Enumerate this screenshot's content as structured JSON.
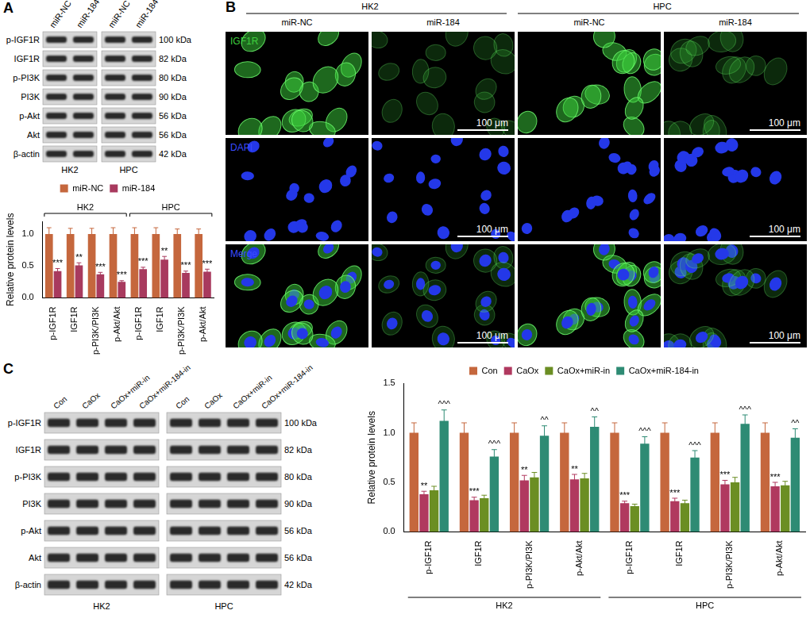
{
  "blots": [
    {
      "panel": "A",
      "cell_lines": [
        "HK2",
        "HPC"
      ],
      "lanes": [
        "miR-NC",
        "miR-184"
      ],
      "rows": [
        "p-IGF1R",
        "IGF1R",
        "p-PI3K",
        "PI3K",
        "p-Akt",
        "Akt",
        "β-actin"
      ],
      "sizes": [
        "100 kDa",
        "82 kDa",
        "80 kDa",
        "90 kDa",
        "56 kDa",
        "56 kDa",
        "42 kDa"
      ]
    },
    {
      "panel": "C",
      "cell_lines": [
        "HK2",
        "HPC"
      ],
      "lanes": [
        "Con",
        "CaOx",
        "CaOx+miR-in",
        "CaOx+miR-184-in"
      ],
      "rows": [
        "p-IGF1R",
        "IGF1R",
        "p-PI3K",
        "PI3K",
        "p-Akt",
        "Akt",
        "β-actin"
      ],
      "sizes": [
        "100 kDa",
        "82 kDa",
        "80 kDa",
        "90 kDa",
        "56 kDa",
        "56 kDa",
        "42 kDa"
      ]
    }
  ],
  "microscopy": {
    "panel": "B",
    "cell_lines": [
      "HK2",
      "HPC"
    ],
    "conditions": [
      "miR-NC",
      "miR-184"
    ],
    "channels": [
      "IGF1R",
      "DAPI",
      "Merge"
    ],
    "scale_bar": "100 μm"
  },
  "chart_data": [
    {
      "type": "bar",
      "y_label": "Relative protein levels",
      "categories": [
        "p-IGF1R",
        "IGF1R",
        "p-PI3K/PI3K",
        "p-Akt/Akt",
        "p-IGF1R",
        "IGF1R",
        "p-PI3K/PI3K",
        "p-Akt/Akt"
      ],
      "groups": [
        "HK2",
        "HPC"
      ],
      "series": [
        {
          "name": "miR-NC",
          "color": "#c5673d",
          "values": [
            1,
            1,
            1,
            1,
            1,
            1,
            1,
            1
          ],
          "errors": [
            0.1,
            0.09,
            0.09,
            0.1,
            0.1,
            0.1,
            0.08,
            0.08
          ]
        },
        {
          "name": "miR-184",
          "color": "#a83a5e",
          "values": [
            0.42,
            0.51,
            0.37,
            0.25,
            0.45,
            0.6,
            0.39,
            0.41
          ],
          "errors": [
            0.04,
            0.04,
            0.03,
            0.02,
            0.03,
            0.05,
            0.03,
            0.04
          ],
          "annotations": [
            "***",
            "**",
            "***",
            "***",
            "***",
            "**",
            "***",
            "***"
          ]
        }
      ],
      "ylim": [
        0,
        1.2
      ],
      "yticks": [
        {
          "value": 0,
          "label": "0.0"
        },
        0.5,
        {
          "value": 1,
          "label": "1.0"
        }
      ],
      "legend": "top",
      "grid": false
    },
    {
      "type": "bar",
      "y_label": "Relative protein levels",
      "categories": [
        "p-IGF1R",
        "IGF1R",
        "p-PI3K/PI3K",
        "p-Akt/Akt",
        "p-IGF1R",
        "IGF1R",
        "p-PI3K/PI3K",
        "p-Akt/Akt"
      ],
      "groups": [
        "HK2",
        "HPC"
      ],
      "series": [
        {
          "name": "Con",
          "color": "#c5673d",
          "values": [
            1,
            1,
            1,
            1,
            1,
            1,
            1,
            1
          ],
          "errors": [
            0.1,
            0.1,
            0.1,
            0.1,
            0.1,
            0.1,
            0.1,
            0.1
          ]
        },
        {
          "name": "CaOx",
          "color": "#b0395f",
          "values": [
            0.38,
            0.32,
            0.52,
            0.53,
            0.29,
            0.31,
            0.48,
            0.46
          ],
          "errors": [
            0.03,
            0.03,
            0.05,
            0.05,
            0.02,
            0.03,
            0.04,
            0.04
          ],
          "annotations": [
            "**",
            "***",
            "**",
            "**",
            "***",
            "***",
            "***",
            "***"
          ]
        },
        {
          "name": "CaOx+miR-in",
          "color": "#6b8e23",
          "values": [
            0.42,
            0.34,
            0.55,
            0.54,
            0.26,
            0.29,
            0.5,
            0.47
          ],
          "errors": [
            0.04,
            0.03,
            0.05,
            0.05,
            0.02,
            0.03,
            0.05,
            0.04
          ]
        },
        {
          "name": "CaOx+miR-184-in",
          "color": "#2e8b74",
          "values": [
            1.12,
            0.76,
            0.97,
            1.06,
            0.89,
            0.75,
            1.09,
            0.95
          ],
          "errors": [
            0.11,
            0.07,
            0.1,
            0.1,
            0.07,
            0.07,
            0.09,
            0.09
          ],
          "annotations": [
            "^^^",
            "^^^",
            "^^",
            "^^",
            "^^^",
            "^^^",
            "^^^",
            "^^"
          ]
        }
      ],
      "ylim": [
        0,
        1.5
      ],
      "yticks": [
        {
          "value": 0,
          "label": "0.0"
        },
        0.5,
        {
          "value": 1,
          "label": "1.0"
        },
        1.5
      ],
      "legend": "top",
      "grid": false
    }
  ]
}
